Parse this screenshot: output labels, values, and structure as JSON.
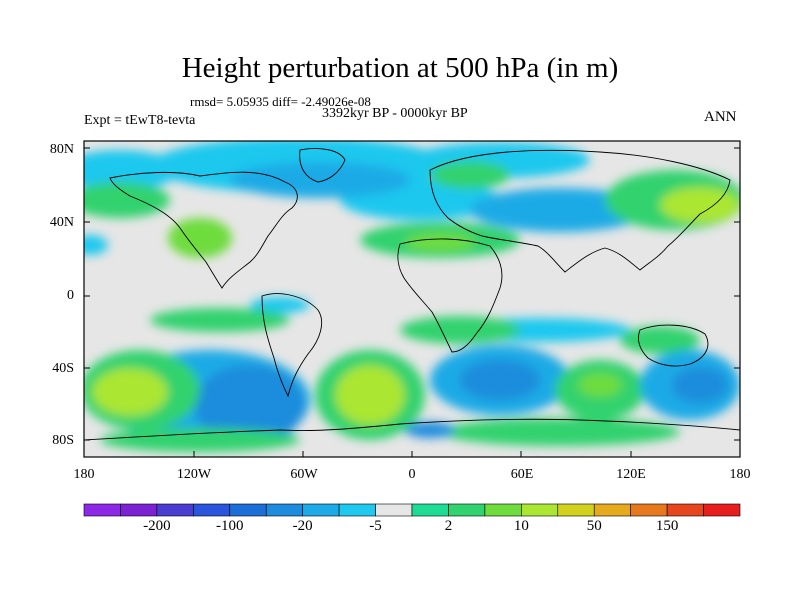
{
  "title": "Height perturbation at 500 hPa (in m)",
  "stats": "rmsd= 5.05935 diff= -2.49026e-08",
  "period": "3392kyr BP - 0000kyr BP",
  "experiment": "Expt = tEwT8-tevta",
  "season": "ANN",
  "lat_labels": [
    "80N",
    "40N",
    "0",
    "40S",
    "80S"
  ],
  "lon_labels": [
    "180",
    "120W",
    "60W",
    "0",
    "60E",
    "120E",
    "180"
  ],
  "colorbar": {
    "colors": [
      "#8c28e6",
      "#7b23d2",
      "#4b3cd2",
      "#2a55dc",
      "#1e6ed7",
      "#1e8cdc",
      "#1eaae6",
      "#1ec8ee",
      "#e6e6e6",
      "#1edc96",
      "#32d26e",
      "#6edc3c",
      "#aae632",
      "#d2d21e",
      "#e6aa1e",
      "#e6781e",
      "#e6461e",
      "#e61e1e"
    ],
    "tick_labels": [
      "-200",
      "-100",
      "-20",
      "-5",
      "2",
      "10",
      "50",
      "150"
    ],
    "tick_edges": [
      2,
      4,
      6,
      8,
      10,
      12,
      14,
      16
    ]
  },
  "colors": {
    "neutral": "#e6e6e6",
    "land_outline": "#000000"
  }
}
